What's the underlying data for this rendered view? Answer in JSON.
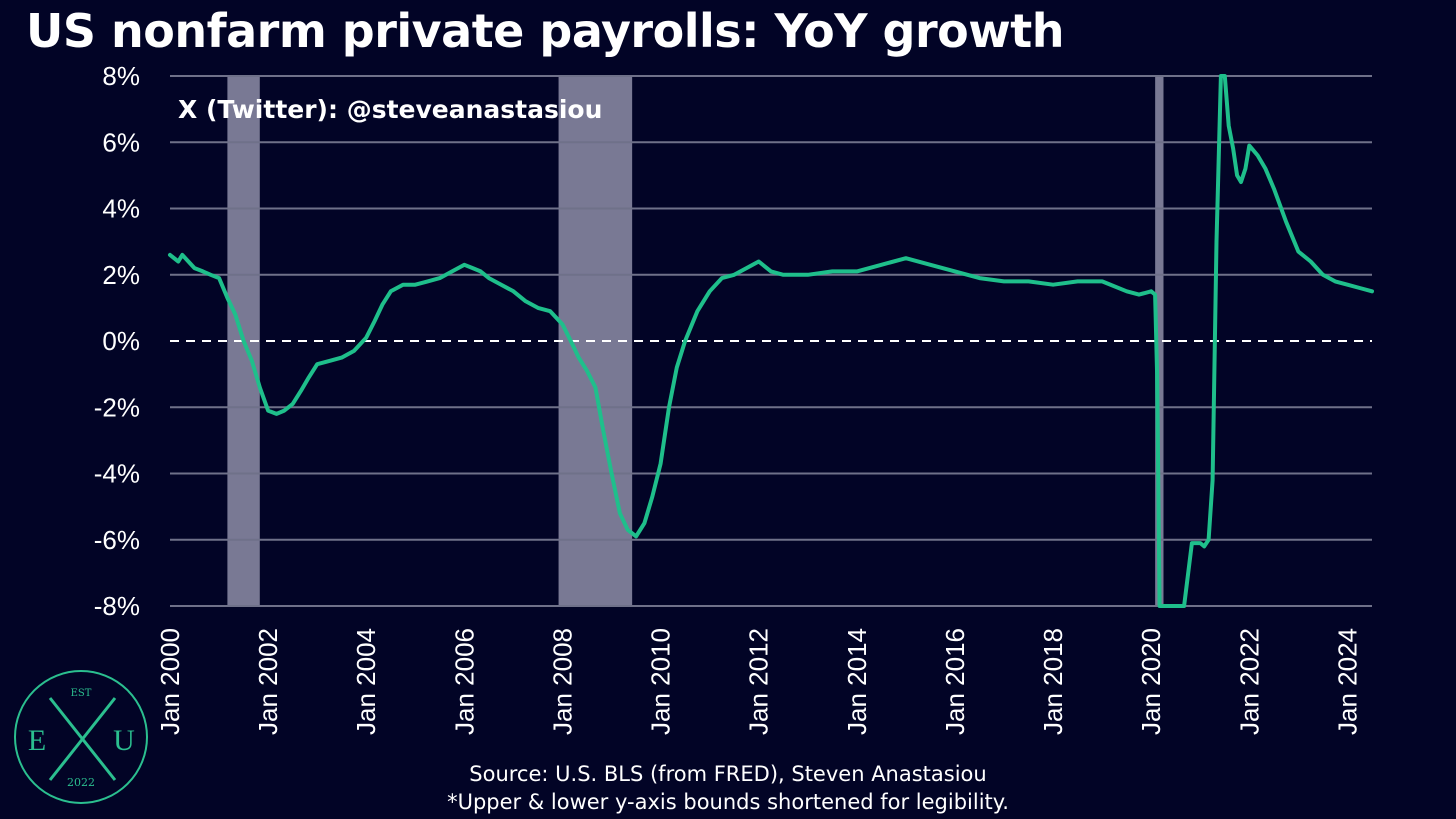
{
  "title": "US nonfarm private payrolls: YoY growth",
  "watermark": "X (Twitter): @steveanastasiou",
  "source": "Source: U.S. BLS (from FRED), Steven Anastasiou",
  "note": "*Upper & lower y-axis bounds shortened for legibility.",
  "logo": {
    "top": "EST",
    "left": "E",
    "center": "X",
    "right": "U",
    "bottom": "2022"
  },
  "colors": {
    "background": "#020426",
    "line": "#1fbf8b",
    "recession": "#8e8ea8",
    "grid": "#6f7189",
    "text": "#ffffff",
    "logo": "#2bbf8f"
  },
  "chart_data": {
    "type": "line",
    "title": "US nonfarm private payrolls: YoY growth",
    "xlabel": "",
    "ylabel": "",
    "xlim": [
      2000.0,
      2024.5
    ],
    "ylim": [
      -8,
      8
    ],
    "grid": true,
    "zero_line": "dashed",
    "y_ticks": [
      8,
      6,
      4,
      2,
      0,
      -2,
      -4,
      -6,
      -8
    ],
    "y_tick_labels": [
      "8%",
      "6%",
      "4%",
      "2%",
      "0%",
      "-2%",
      "-4%",
      "-6%",
      "-8%"
    ],
    "x_ticks": [
      2000,
      2002,
      2004,
      2006,
      2008,
      2010,
      2012,
      2014,
      2016,
      2018,
      2020,
      2022,
      2024
    ],
    "x_tick_labels": [
      "Jan 2000",
      "Jan 2002",
      "Jan 2004",
      "Jan 2006",
      "Jan 2008",
      "Jan 2010",
      "Jan 2012",
      "Jan 2014",
      "Jan 2016",
      "Jan 2018",
      "Jan 2020",
      "Jan 2022",
      "Jan 2024"
    ],
    "recessions": [
      [
        2001.17,
        2001.83
      ],
      [
        2007.92,
        2009.42
      ],
      [
        2020.08,
        2020.25
      ]
    ],
    "series": [
      {
        "x": [
          2000.0,
          2000.17,
          2000.25,
          2000.5,
          2000.67,
          2000.83,
          2001.0,
          2001.17,
          2001.33,
          2001.5,
          2001.67,
          2001.83,
          2002.0,
          2002.17,
          2002.33,
          2002.5,
          2002.67,
          2002.83,
          2003.0,
          2003.25,
          2003.5,
          2003.75,
          2004.0,
          2004.17,
          2004.33,
          2004.5,
          2004.75,
          2005.0,
          2005.25,
          2005.5,
          2005.75,
          2006.0,
          2006.17,
          2006.33,
          2006.5,
          2006.75,
          2007.0,
          2007.25,
          2007.5,
          2007.75,
          2008.0,
          2008.17,
          2008.33,
          2008.5,
          2008.67,
          2008.83,
          2009.0,
          2009.17,
          2009.33,
          2009.5,
          2009.67,
          2009.83,
          2010.0,
          2010.17,
          2010.33,
          2010.5,
          2010.75,
          2011.0,
          2011.25,
          2011.5,
          2011.75,
          2012.0,
          2012.25,
          2012.5,
          2013.0,
          2013.5,
          2014.0,
          2014.5,
          2015.0,
          2015.5,
          2016.0,
          2016.5,
          2017.0,
          2017.5,
          2018.0,
          2018.5,
          2019.0,
          2019.5,
          2019.75,
          2020.0,
          2020.08,
          2020.12,
          2020.17,
          2020.67,
          2020.83,
          2021.0,
          2021.08,
          2021.17,
          2021.25,
          2021.33,
          2021.42,
          2021.5,
          2021.58,
          2021.67,
          2021.75,
          2021.83,
          2021.92,
          2022.0,
          2022.17,
          2022.33,
          2022.5,
          2022.75,
          2023.0,
          2023.25,
          2023.5,
          2023.75,
          2024.0,
          2024.25,
          2024.5
        ],
        "values": [
          2.6,
          2.4,
          2.6,
          2.2,
          2.1,
          2.0,
          1.9,
          1.3,
          0.8,
          0.0,
          -0.6,
          -1.4,
          -2.1,
          -2.2,
          -2.1,
          -1.9,
          -1.5,
          -1.1,
          -0.7,
          -0.6,
          -0.5,
          -0.3,
          0.1,
          0.6,
          1.1,
          1.5,
          1.7,
          1.7,
          1.8,
          1.9,
          2.1,
          2.3,
          2.2,
          2.1,
          1.9,
          1.7,
          1.5,
          1.2,
          1.0,
          0.9,
          0.5,
          0.0,
          -0.5,
          -0.9,
          -1.4,
          -2.7,
          -4.0,
          -5.2,
          -5.7,
          -5.9,
          -5.5,
          -4.7,
          -3.7,
          -2.0,
          -0.8,
          0.0,
          0.9,
          1.5,
          1.9,
          2.0,
          2.2,
          2.4,
          2.1,
          2.0,
          2.0,
          2.1,
          2.1,
          2.3,
          2.5,
          2.3,
          2.1,
          1.9,
          1.8,
          1.8,
          1.7,
          1.8,
          1.8,
          1.5,
          1.4,
          1.5,
          1.4,
          -1.0,
          -8.0,
          -8.0,
          -6.1,
          -6.1,
          -6.2,
          -6.0,
          -4.2,
          3.0,
          8.0,
          8.0,
          6.5,
          5.8,
          5.0,
          4.8,
          5.2,
          5.9,
          5.6,
          5.2,
          4.6,
          3.6,
          2.7,
          2.4,
          2.0,
          1.8,
          1.7,
          1.6,
          1.5
        ]
      }
    ]
  }
}
